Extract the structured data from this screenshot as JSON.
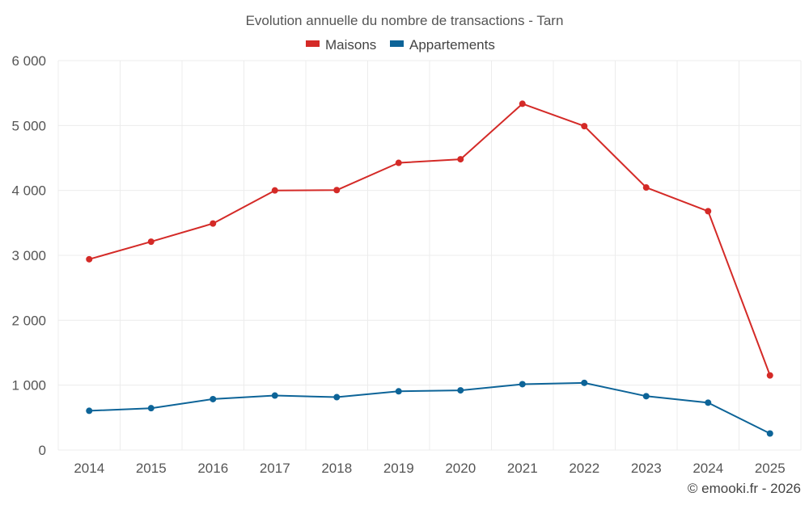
{
  "chart_data": {
    "type": "line",
    "title": "Evolution annuelle du nombre de transactions - Tarn",
    "categories": [
      "2014",
      "2015",
      "2016",
      "2017",
      "2018",
      "2019",
      "2020",
      "2021",
      "2022",
      "2023",
      "2024",
      "2025"
    ],
    "series": [
      {
        "name": "Maisons",
        "color": "#d42a27",
        "values": [
          2940,
          3210,
          3490,
          4000,
          4005,
          4425,
          4480,
          5335,
          4990,
          4045,
          3680,
          1150
        ]
      },
      {
        "name": "Appartements",
        "color": "#0d6498",
        "values": [
          605,
          645,
          785,
          840,
          815,
          905,
          920,
          1015,
          1035,
          830,
          730,
          255
        ]
      }
    ],
    "y_ticks": [
      "0",
      "1 000",
      "2 000",
      "3 000",
      "4 000",
      "5 000",
      "6 000"
    ],
    "ylim": [
      0,
      6000
    ],
    "grid": true,
    "legend_position": "top-center",
    "credit": "© emooki.fr - 2026"
  }
}
